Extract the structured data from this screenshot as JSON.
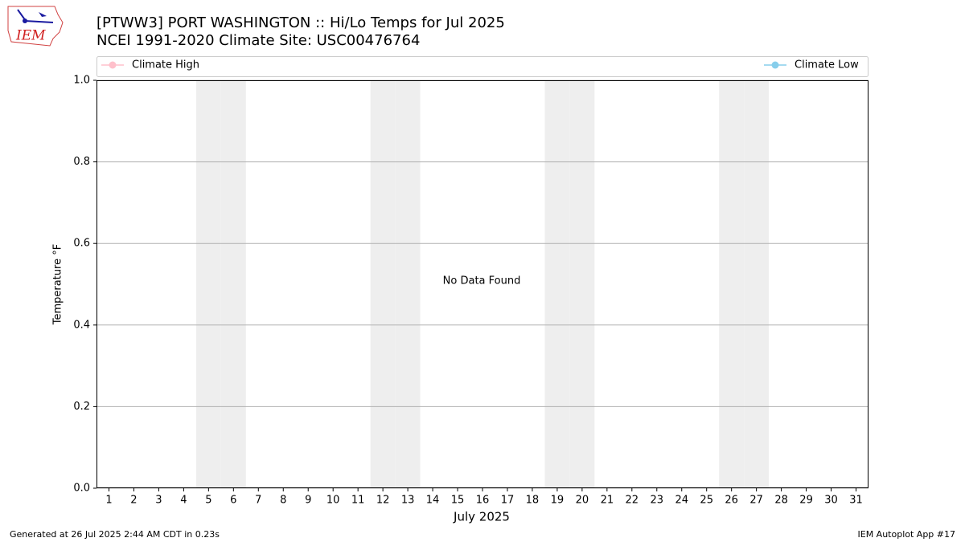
{
  "logo_text": "IEM",
  "footer_left": "Generated at 26 Jul 2025 2:44 AM CDT in 0.23s",
  "footer_right": "IEM Autoplot App #17",
  "chart_data": {
    "type": "line",
    "title": "[PTWW3] PORT WASHINGTON :: Hi/Lo Temps for Jul 2025",
    "subtitle": "NCEI 1991-2020 Climate Site: USC00476764",
    "x_label": "July 2025",
    "y_label": "Temperature °F",
    "annotation": "No Data Found",
    "categories": [
      "1",
      "2",
      "3",
      "4",
      "5",
      "6",
      "7",
      "8",
      "9",
      "10",
      "11",
      "12",
      "13",
      "14",
      "15",
      "16",
      "17",
      "18",
      "19",
      "20",
      "21",
      "22",
      "23",
      "24",
      "25",
      "26",
      "27",
      "28",
      "29",
      "30",
      "31"
    ],
    "weekend_days": [
      "5",
      "6",
      "12",
      "13",
      "19",
      "20",
      "26",
      "27"
    ],
    "series": [
      {
        "name": "Climate High",
        "color": "#ffc0cb",
        "values": [
          null,
          null,
          null,
          null,
          null,
          null,
          null,
          null,
          null,
          null,
          null,
          null,
          null,
          null,
          null,
          null,
          null,
          null,
          null,
          null,
          null,
          null,
          null,
          null,
          null,
          null,
          null,
          null,
          null,
          null,
          null
        ]
      },
      {
        "name": "Climate Low",
        "color": "#87ceeb",
        "values": [
          null,
          null,
          null,
          null,
          null,
          null,
          null,
          null,
          null,
          null,
          null,
          null,
          null,
          null,
          null,
          null,
          null,
          null,
          null,
          null,
          null,
          null,
          null,
          null,
          null,
          null,
          null,
          null,
          null,
          null,
          null
        ]
      }
    ],
    "ylim": [
      0,
      1
    ],
    "yticks": [
      {
        "value": 0,
        "label": "0.0"
      },
      0.2,
      0.4,
      0.6,
      0.8,
      {
        "value": 1,
        "label": "1.0"
      }
    ],
    "grid": true
  }
}
